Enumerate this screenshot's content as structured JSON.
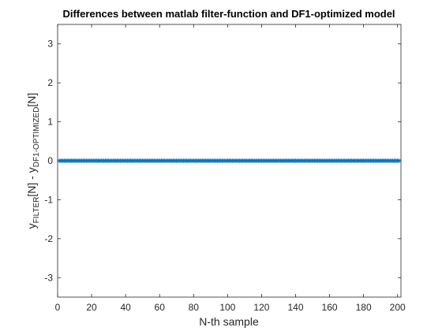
{
  "chart_data": {
    "type": "line",
    "title": "Differences between matlab filter-function and DF1-optimized model",
    "xlabel": "N-th sample",
    "ylabel": {
      "part1": "y",
      "sub1": "FILTER",
      "part2": "[N] - y",
      "sub2": "DF1-OPTIMIZED",
      "part3": "[N]"
    },
    "xlim": [
      0,
      202
    ],
    "ylim": [
      -3.5,
      3.5
    ],
    "xticks": [
      0,
      20,
      40,
      60,
      80,
      100,
      120,
      140,
      160,
      180,
      200
    ],
    "yticks": [
      -3,
      -2,
      -1,
      0,
      1,
      2,
      3
    ],
    "grid": false,
    "marker": "asterisk",
    "series": [
      {
        "color": "#0072BD",
        "x_start": 1,
        "x_end": 201,
        "x_step": 1,
        "constant_value": 0
      }
    ]
  }
}
